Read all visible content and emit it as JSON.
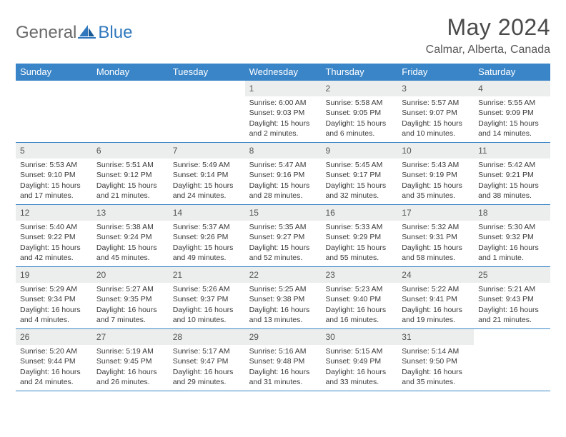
{
  "brand": {
    "part1": "General",
    "part2": "Blue"
  },
  "title": "May 2024",
  "location": "Calmar, Alberta, Canada",
  "colors": {
    "header_bg": "#3a85c8",
    "daynum_bg": "#eceded",
    "text": "#3a3a3a",
    "title_text": "#4a4a4a"
  },
  "weekdays": [
    "Sunday",
    "Monday",
    "Tuesday",
    "Wednesday",
    "Thursday",
    "Friday",
    "Saturday"
  ],
  "weeks": [
    [
      null,
      null,
      null,
      {
        "n": "1",
        "sr": "6:00 AM",
        "ss": "9:03 PM",
        "dl": "15 hours and 2 minutes."
      },
      {
        "n": "2",
        "sr": "5:58 AM",
        "ss": "9:05 PM",
        "dl": "15 hours and 6 minutes."
      },
      {
        "n": "3",
        "sr": "5:57 AM",
        "ss": "9:07 PM",
        "dl": "15 hours and 10 minutes."
      },
      {
        "n": "4",
        "sr": "5:55 AM",
        "ss": "9:09 PM",
        "dl": "15 hours and 14 minutes."
      }
    ],
    [
      {
        "n": "5",
        "sr": "5:53 AM",
        "ss": "9:10 PM",
        "dl": "15 hours and 17 minutes."
      },
      {
        "n": "6",
        "sr": "5:51 AM",
        "ss": "9:12 PM",
        "dl": "15 hours and 21 minutes."
      },
      {
        "n": "7",
        "sr": "5:49 AM",
        "ss": "9:14 PM",
        "dl": "15 hours and 24 minutes."
      },
      {
        "n": "8",
        "sr": "5:47 AM",
        "ss": "9:16 PM",
        "dl": "15 hours and 28 minutes."
      },
      {
        "n": "9",
        "sr": "5:45 AM",
        "ss": "9:17 PM",
        "dl": "15 hours and 32 minutes."
      },
      {
        "n": "10",
        "sr": "5:43 AM",
        "ss": "9:19 PM",
        "dl": "15 hours and 35 minutes."
      },
      {
        "n": "11",
        "sr": "5:42 AM",
        "ss": "9:21 PM",
        "dl": "15 hours and 38 minutes."
      }
    ],
    [
      {
        "n": "12",
        "sr": "5:40 AM",
        "ss": "9:22 PM",
        "dl": "15 hours and 42 minutes."
      },
      {
        "n": "13",
        "sr": "5:38 AM",
        "ss": "9:24 PM",
        "dl": "15 hours and 45 minutes."
      },
      {
        "n": "14",
        "sr": "5:37 AM",
        "ss": "9:26 PM",
        "dl": "15 hours and 49 minutes."
      },
      {
        "n": "15",
        "sr": "5:35 AM",
        "ss": "9:27 PM",
        "dl": "15 hours and 52 minutes."
      },
      {
        "n": "16",
        "sr": "5:33 AM",
        "ss": "9:29 PM",
        "dl": "15 hours and 55 minutes."
      },
      {
        "n": "17",
        "sr": "5:32 AM",
        "ss": "9:31 PM",
        "dl": "15 hours and 58 minutes."
      },
      {
        "n": "18",
        "sr": "5:30 AM",
        "ss": "9:32 PM",
        "dl": "16 hours and 1 minute."
      }
    ],
    [
      {
        "n": "19",
        "sr": "5:29 AM",
        "ss": "9:34 PM",
        "dl": "16 hours and 4 minutes."
      },
      {
        "n": "20",
        "sr": "5:27 AM",
        "ss": "9:35 PM",
        "dl": "16 hours and 7 minutes."
      },
      {
        "n": "21",
        "sr": "5:26 AM",
        "ss": "9:37 PM",
        "dl": "16 hours and 10 minutes."
      },
      {
        "n": "22",
        "sr": "5:25 AM",
        "ss": "9:38 PM",
        "dl": "16 hours and 13 minutes."
      },
      {
        "n": "23",
        "sr": "5:23 AM",
        "ss": "9:40 PM",
        "dl": "16 hours and 16 minutes."
      },
      {
        "n": "24",
        "sr": "5:22 AM",
        "ss": "9:41 PM",
        "dl": "16 hours and 19 minutes."
      },
      {
        "n": "25",
        "sr": "5:21 AM",
        "ss": "9:43 PM",
        "dl": "16 hours and 21 minutes."
      }
    ],
    [
      {
        "n": "26",
        "sr": "5:20 AM",
        "ss": "9:44 PM",
        "dl": "16 hours and 24 minutes."
      },
      {
        "n": "27",
        "sr": "5:19 AM",
        "ss": "9:45 PM",
        "dl": "16 hours and 26 minutes."
      },
      {
        "n": "28",
        "sr": "5:17 AM",
        "ss": "9:47 PM",
        "dl": "16 hours and 29 minutes."
      },
      {
        "n": "29",
        "sr": "5:16 AM",
        "ss": "9:48 PM",
        "dl": "16 hours and 31 minutes."
      },
      {
        "n": "30",
        "sr": "5:15 AM",
        "ss": "9:49 PM",
        "dl": "16 hours and 33 minutes."
      },
      {
        "n": "31",
        "sr": "5:14 AM",
        "ss": "9:50 PM",
        "dl": "16 hours and 35 minutes."
      },
      null
    ]
  ],
  "labels": {
    "sunrise": "Sunrise: ",
    "sunset": "Sunset: ",
    "daylight": "Daylight: "
  }
}
